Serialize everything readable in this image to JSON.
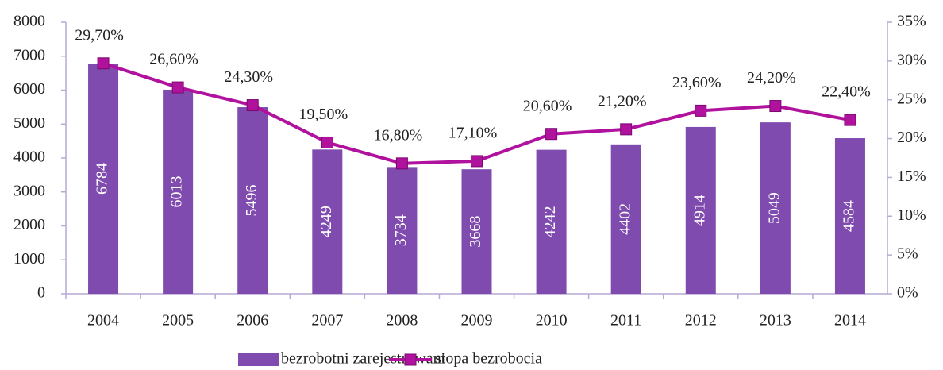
{
  "chart_data": {
    "type": "bar",
    "categories": [
      "2004",
      "2005",
      "2006",
      "2007",
      "2008",
      "2009",
      "2010",
      "2011",
      "2012",
      "2013",
      "2014"
    ],
    "series": [
      {
        "name": "bezrobotni zarejestrowani",
        "type": "bar",
        "color": "#7f4bae",
        "values": [
          6784,
          6013,
          5496,
          4249,
          3734,
          3668,
          4242,
          4402,
          4914,
          5049,
          4584
        ]
      },
      {
        "name": "stopa bezrobocia",
        "type": "line",
        "axis": "y2",
        "color": "#b0129e",
        "values": [
          29.7,
          26.6,
          24.3,
          19.5,
          16.8,
          17.1,
          20.6,
          21.2,
          23.6,
          24.2,
          22.4
        ],
        "value_labels": [
          "29,70%",
          "26,60%",
          "24,30%",
          "19,50%",
          "16,80%",
          "17,10%",
          "20,60%",
          "21,20%",
          "23,60%",
          "24,20%",
          "22,40%"
        ]
      }
    ],
    "ylim": [
      0,
      8000
    ],
    "yticks": [
      0,
      1000,
      2000,
      3000,
      4000,
      5000,
      6000,
      7000,
      8000
    ],
    "y2lim": [
      0,
      35
    ],
    "y2ticks": [
      {
        "value": 0,
        "label": "0%"
      },
      {
        "value": 5,
        "label": "5%"
      },
      {
        "value": 10,
        "label": "10%"
      },
      {
        "value": 15,
        "label": "15%"
      },
      {
        "value": 20,
        "label": "20%"
      },
      {
        "value": 25,
        "label": "25%"
      },
      {
        "value": 30,
        "label": "30%"
      },
      {
        "value": 35,
        "label": "35%"
      }
    ],
    "legend": "bottom"
  }
}
